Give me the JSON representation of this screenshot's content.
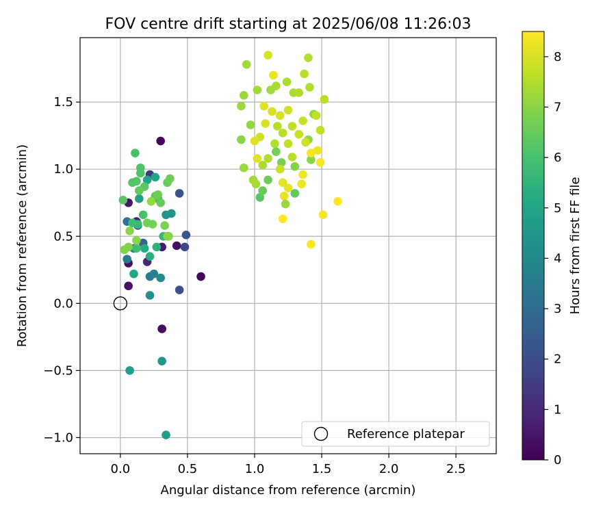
{
  "chart_data": {
    "type": "scatter",
    "title": "FOV centre drift starting at 2025/06/08 11:26:03",
    "xlabel": "Angular distance from reference (arcmin)",
    "ylabel": "Rotation from reference (arcmin)",
    "xlim": [
      -0.3,
      2.8
    ],
    "ylim": [
      -1.12,
      1.98
    ],
    "xticks": [
      0.0,
      0.5,
      1.0,
      1.5,
      2.0,
      2.5
    ],
    "xtick_labels": [
      "0.0",
      "0.5",
      "1.0",
      "1.5",
      "2.0",
      "2.5"
    ],
    "yticks": [
      -1.0,
      -0.5,
      0.0,
      0.5,
      1.0,
      1.5
    ],
    "ytick_labels": [
      "−1.0",
      "−0.5",
      "0.0",
      "0.5",
      "1.0",
      "1.5"
    ],
    "grid": true,
    "colormap": "viridis",
    "colorbar": {
      "label": "Hours from first FF file",
      "range": [
        0,
        8.5
      ],
      "ticks": [
        0,
        1,
        2,
        3,
        4,
        5,
        6,
        7,
        8
      ],
      "tick_labels": [
        "0",
        "1",
        "2",
        "3",
        "4",
        "5",
        "6",
        "7",
        "8"
      ]
    },
    "reference": {
      "x": 0.0,
      "y": 0.0,
      "label": "Reference platepar"
    },
    "legend": {
      "placement": "lower right",
      "entries": [
        "Reference platepar"
      ]
    },
    "points": [
      [
        0.3,
        1.21,
        0.1
      ],
      [
        0.6,
        0.2,
        0.2
      ],
      [
        0.31,
        -0.19,
        0.25
      ],
      [
        0.42,
        0.43,
        0.3
      ],
      [
        0.06,
        0.3,
        0.35
      ],
      [
        0.06,
        0.13,
        0.4
      ],
      [
        0.06,
        0.75,
        0.5
      ],
      [
        0.31,
        0.42,
        0.6
      ],
      [
        0.12,
        0.61,
        0.7
      ],
      [
        0.2,
        0.31,
        0.9
      ],
      [
        0.22,
        0.96,
        1.4
      ],
      [
        0.48,
        0.42,
        1.8
      ],
      [
        0.44,
        0.1,
        2.0
      ],
      [
        0.44,
        0.82,
        2.1
      ],
      [
        0.49,
        0.51,
        2.2
      ],
      [
        0.17,
        0.45,
        2.8
      ],
      [
        0.13,
        0.58,
        2.9
      ],
      [
        0.05,
        0.61,
        3.2
      ],
      [
        0.1,
        0.41,
        3.4
      ],
      [
        0.05,
        0.33,
        3.5
      ],
      [
        0.22,
        0.2,
        3.6
      ],
      [
        0.25,
        0.22,
        3.8
      ],
      [
        0.3,
        0.19,
        4.0
      ],
      [
        0.22,
        0.06,
        4.2
      ],
      [
        0.34,
        0.66,
        4.3
      ],
      [
        0.38,
        0.67,
        4.4
      ],
      [
        0.31,
        -0.43,
        4.5
      ],
      [
        0.34,
        -0.98,
        4.6
      ],
      [
        0.07,
        -0.5,
        4.7
      ],
      [
        0.14,
        0.78,
        4.8
      ],
      [
        0.2,
        0.92,
        4.9
      ],
      [
        0.26,
        0.94,
        5.0
      ],
      [
        0.1,
        0.22,
        5.1
      ],
      [
        0.18,
        0.41,
        5.2
      ],
      [
        0.22,
        0.35,
        5.3
      ],
      [
        0.27,
        0.42,
        5.4
      ],
      [
        0.28,
        0.78,
        5.5
      ],
      [
        0.32,
        0.5,
        5.6
      ],
      [
        0.13,
        0.59,
        5.7
      ],
      [
        0.09,
        0.6,
        5.8
      ],
      [
        0.12,
        0.41,
        5.9
      ],
      [
        0.17,
        0.66,
        6.0
      ],
      [
        0.11,
        1.12,
        6.0
      ],
      [
        0.15,
        1.01,
        6.1
      ],
      [
        0.15,
        0.97,
        6.1
      ],
      [
        0.09,
        0.9,
        6.2
      ],
      [
        0.12,
        0.91,
        6.2
      ],
      [
        0.18,
        0.87,
        6.3
      ],
      [
        0.02,
        0.77,
        6.3
      ],
      [
        0.14,
        0.84,
        6.4
      ],
      [
        0.26,
        0.8,
        6.4
      ],
      [
        0.3,
        0.75,
        6.5
      ],
      [
        0.35,
        0.9,
        6.5
      ],
      [
        0.37,
        0.93,
        6.6
      ],
      [
        0.28,
        0.81,
        6.6
      ],
      [
        0.2,
        0.6,
        6.7
      ],
      [
        0.24,
        0.59,
        6.7
      ],
      [
        0.33,
        0.58,
        6.8
      ],
      [
        0.36,
        0.5,
        6.8
      ],
      [
        0.06,
        0.42,
        6.9
      ],
      [
        0.03,
        0.4,
        6.9
      ],
      [
        0.07,
        0.54,
        7.0
      ],
      [
        0.12,
        0.47,
        7.0
      ],
      [
        0.35,
        0.5,
        7.0
      ],
      [
        0.23,
        0.76,
        7.1
      ],
      [
        1.04,
        0.79,
        6.3
      ],
      [
        1.06,
        0.84,
        6.5
      ],
      [
        1.1,
        0.92,
        6.6
      ],
      [
        1.2,
        1.05,
        6.8
      ],
      [
        1.3,
        1.02,
        6.9
      ],
      [
        1.4,
        1.22,
        7.0
      ],
      [
        1.42,
        1.07,
        7.0
      ],
      [
        1.44,
        1.41,
        7.1
      ],
      [
        0.97,
        1.33,
        7.1
      ],
      [
        0.92,
        1.55,
        7.2
      ],
      [
        0.9,
        1.47,
        7.2
      ],
      [
        0.94,
        1.78,
        7.3
      ],
      [
        1.02,
        1.59,
        7.3
      ],
      [
        1.12,
        1.59,
        7.3
      ],
      [
        1.16,
        1.62,
        7.4
      ],
      [
        1.24,
        1.65,
        7.4
      ],
      [
        1.29,
        1.57,
        7.4
      ],
      [
        1.33,
        1.57,
        7.5
      ],
      [
        1.4,
        1.83,
        7.5
      ],
      [
        1.41,
        1.61,
        7.5
      ],
      [
        1.37,
        1.71,
        7.6
      ],
      [
        1.52,
        1.52,
        7.6
      ],
      [
        1.49,
        1.29,
        7.7
      ],
      [
        1.46,
        1.4,
        7.7
      ],
      [
        0.92,
        1.01,
        7.2
      ],
      [
        0.99,
        0.92,
        7.3
      ],
      [
        1.01,
        0.89,
        7.4
      ],
      [
        1.06,
        1.03,
        7.4
      ],
      [
        1.1,
        1.08,
        7.5
      ],
      [
        1.15,
        1.19,
        7.5
      ],
      [
        1.17,
        1.32,
        7.6
      ],
      [
        1.21,
        1.27,
        7.6
      ],
      [
        1.25,
        1.19,
        7.7
      ],
      [
        1.28,
        1.32,
        7.7
      ],
      [
        1.33,
        1.26,
        7.8
      ],
      [
        1.36,
        1.36,
        7.8
      ],
      [
        1.38,
        1.2,
        7.9
      ],
      [
        1.04,
        1.24,
        7.9
      ],
      [
        1.08,
        1.34,
        8.0
      ],
      [
        1.13,
        1.43,
        8.0
      ],
      [
        1.19,
        1.4,
        8.0
      ],
      [
        1.0,
        1.21,
        8.1
      ],
      [
        1.02,
        1.08,
        8.1
      ],
      [
        1.07,
        1.47,
        8.1
      ],
      [
        1.21,
        0.9,
        8.2
      ],
      [
        1.25,
        0.86,
        8.2
      ],
      [
        1.22,
        0.8,
        8.2
      ],
      [
        1.36,
        0.96,
        8.3
      ],
      [
        1.35,
        0.89,
        8.3
      ],
      [
        1.47,
        1.14,
        8.3
      ],
      [
        1.42,
        1.12,
        8.4
      ],
      [
        1.49,
        1.05,
        8.4
      ],
      [
        1.51,
        0.66,
        8.4
      ],
      [
        1.21,
        0.63,
        8.5
      ],
      [
        1.62,
        0.76,
        8.5
      ],
      [
        1.42,
        0.44,
        8.5
      ],
      [
        1.1,
        1.85,
        8.0
      ],
      [
        1.14,
        1.7,
        8.2
      ],
      [
        1.25,
        1.44,
        7.9
      ],
      [
        1.19,
        1.0,
        7.8
      ],
      [
        1.28,
        1.09,
        7.6
      ],
      [
        1.3,
        0.82,
        6.4
      ],
      [
        1.23,
        0.74,
        7.2
      ],
      [
        0.9,
        1.22,
        7.0
      ],
      [
        1.16,
        1.13,
        6.7
      ]
    ]
  }
}
